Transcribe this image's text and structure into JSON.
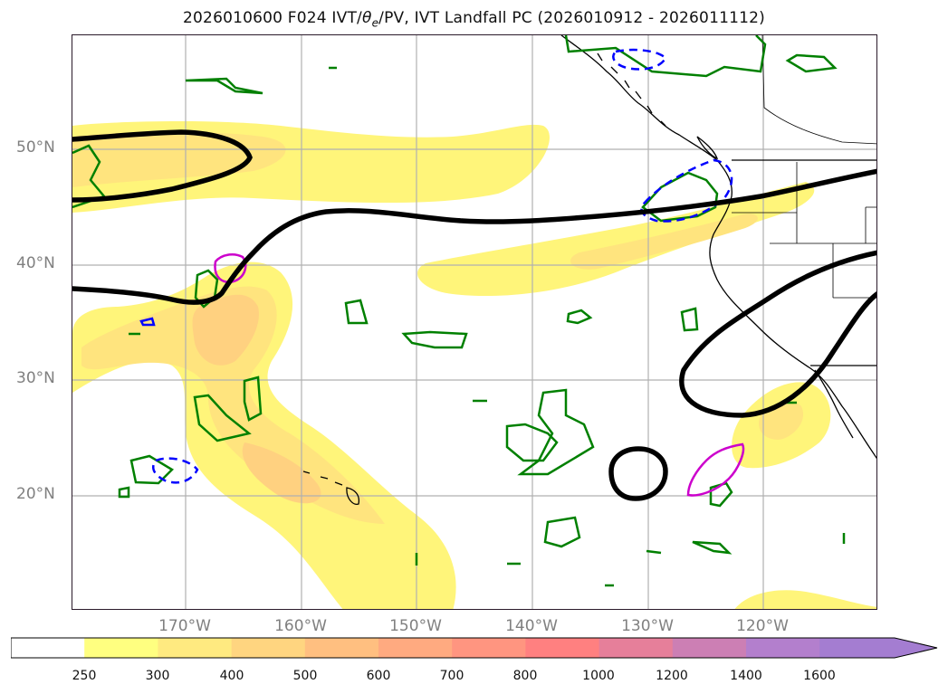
{
  "title": {
    "prefix": "2026010600 F024 IVT/",
    "theta": "θ",
    "theta_sub": "e",
    "suffix": "/PV, IVT Landfall PC (2026010912 - 2026011112)"
  },
  "map": {
    "lat_labels": [
      "50°N",
      "40°N",
      "30°N",
      "20°N"
    ],
    "lon_labels": [
      "170°W",
      "160°W",
      "150°W",
      "140°W",
      "130°W",
      "120°W"
    ]
  },
  "colorbar": {
    "labels": [
      "250",
      "300",
      "400",
      "500",
      "600",
      "700",
      "800",
      "1000",
      "1200",
      "1400",
      "1600"
    ],
    "colors": [
      "#ffffff",
      "#ffff80",
      "#ffea80",
      "#ffd580",
      "#ffbf80",
      "#ffaa80",
      "#ff9580",
      "#ff8080",
      "#e67f9a",
      "#cc7fb4",
      "#b37fcd",
      "#a47dd1"
    ]
  },
  "colors": {
    "ivt_fill_1": "#fff57a",
    "ivt_fill_2": "#ffe47e",
    "ivt_fill_3": "#ffd180",
    "thetae_contour": "#000000",
    "pv_contour": "#008000",
    "pc_positive": "#cc00cc",
    "pc_negative": "#0000ff",
    "gridline": "#b0b0b0"
  }
}
